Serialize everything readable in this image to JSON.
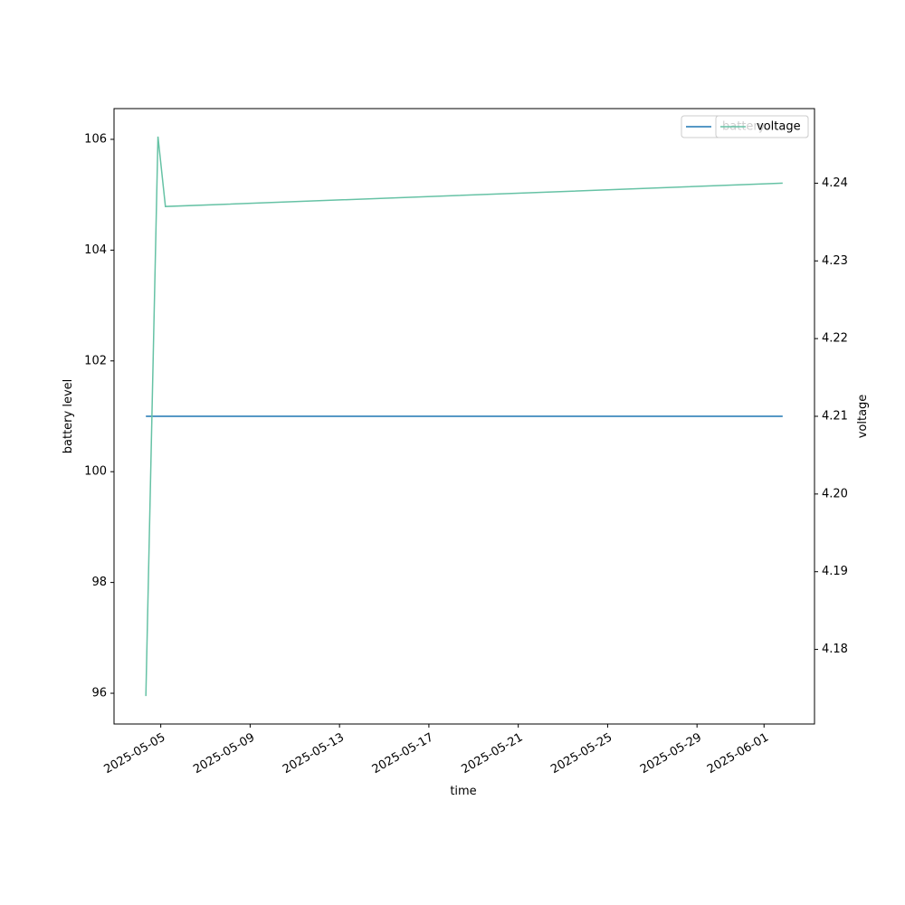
{
  "chart_data": {
    "type": "line",
    "x": [
      "2025-05-04T08:00",
      "2025-05-04T21:00",
      "2025-05-05T05:00",
      "2025-06-01T20:00"
    ],
    "xlabel": "time",
    "ylabel": "battery level",
    "y2label": "voltage",
    "xlim": [
      "2025-05-02T21:48",
      "2025-06-03T06:12"
    ],
    "xticks": [
      "2025-05-05",
      "2025-05-09",
      "2025-05-13",
      "2025-05-17",
      "2025-05-21",
      "2025-05-25",
      "2025-05-29",
      "2025-06-01"
    ],
    "ylim": [
      95.445,
      106.555
    ],
    "yticks": [
      96,
      98,
      100,
      102,
      104,
      106
    ],
    "y2lim": [
      4.1704,
      4.2496
    ],
    "y2ticks": [
      4.18,
      4.19,
      {
        "value": 4.2,
        "label": "4.20"
      },
      4.21,
      4.22,
      4.23,
      4.24
    ],
    "series": [
      {
        "name": "battery",
        "color": "#1f77b4",
        "values": [
          101,
          101,
          101,
          101
        ]
      },
      {
        "name": "voltage",
        "color": "#66c2a5",
        "axis": "y2",
        "values": [
          4.174,
          4.246,
          4.237,
          4.24
        ]
      }
    ],
    "legend": "upper right"
  }
}
